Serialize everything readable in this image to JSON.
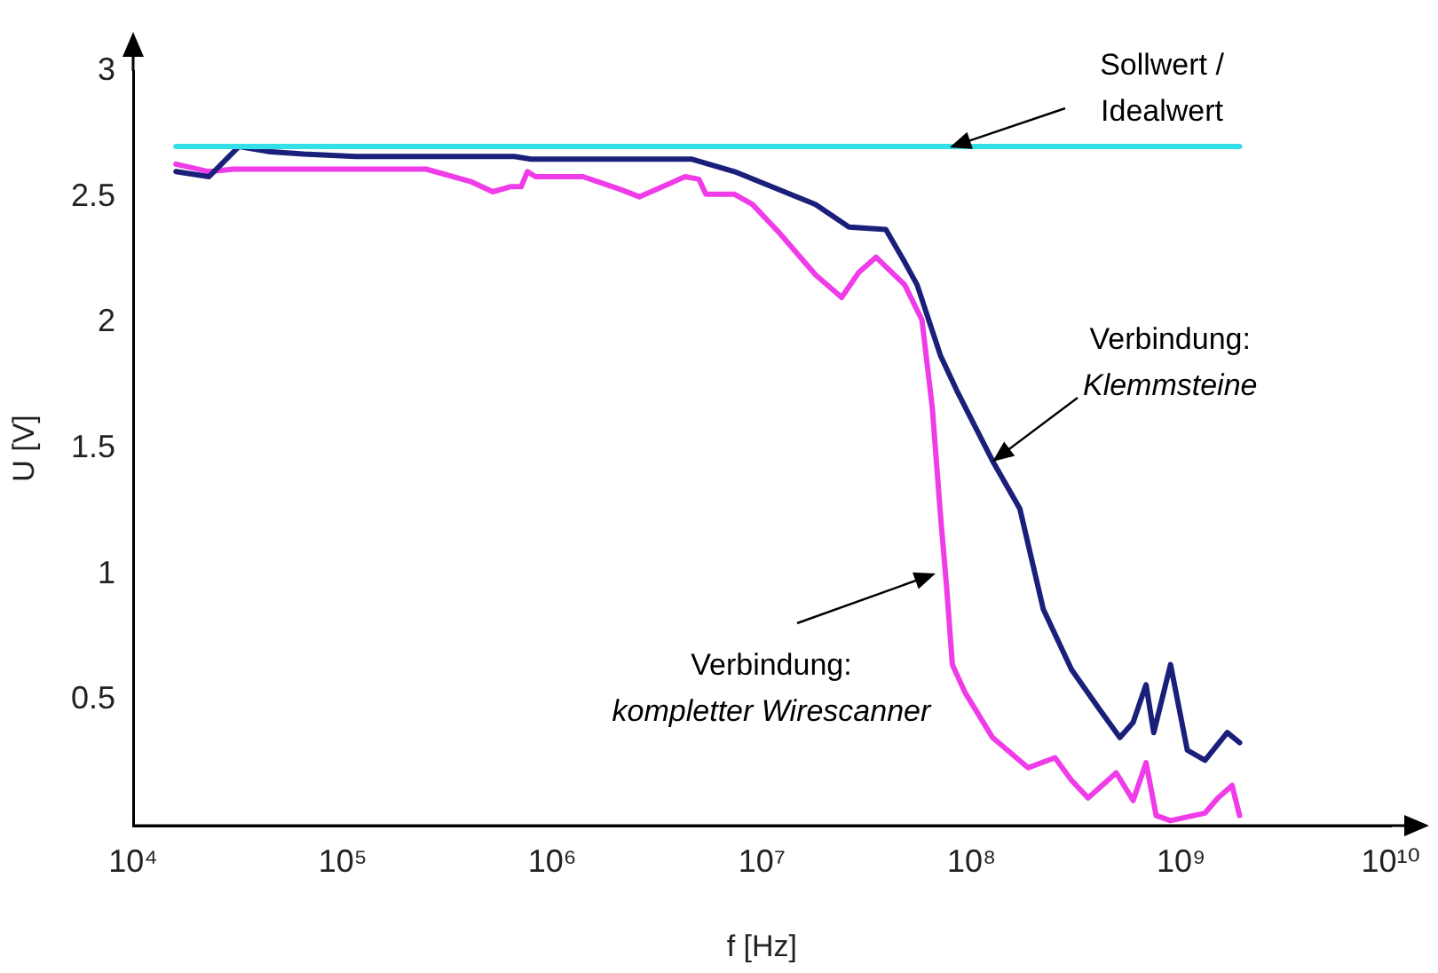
{
  "chart_data": {
    "type": "line",
    "xlabel": "f [Hz]",
    "ylabel": "U [V]",
    "log": "x",
    "grid": false,
    "legend": false,
    "marker": "none",
    "line_style": "solid",
    "xlim": [
      10000,
      10000000000
    ],
    "xticks": [
      {
        "value": 10000,
        "label": "10⁴"
      },
      {
        "value": 100000,
        "label": "10⁵"
      },
      {
        "value": 1000000,
        "label": "10⁶"
      },
      {
        "value": 10000000,
        "label": "10⁷"
      },
      {
        "value": 100000000,
        "label": "10⁸"
      },
      {
        "value": 1000000000,
        "label": "10⁹"
      },
      {
        "value": 10000000000,
        "label": "10¹⁰"
      }
    ],
    "ylim": [
      0,
      3
    ],
    "yticks": [
      0.5,
      1,
      1.5,
      2,
      2.5,
      3
    ],
    "series": [
      {
        "color": "#33e0e8",
        "x": [
          16000,
          1900000000
        ],
        "values": [
          2.7,
          2.7
        ]
      },
      {
        "color": "#1a1f7a",
        "x": [
          16000,
          23000,
          32000,
          44000,
          65000,
          115000,
          660000,
          790000,
          4600000,
          7400000,
          18000000,
          26000000,
          39000000,
          48000000,
          55000000,
          71000000,
          85000000,
          126000000,
          170000000,
          220000000,
          300000000,
          410000000,
          510000000,
          590000000,
          680000000,
          740000000,
          890000000,
          1070000000,
          1300000000,
          1660000000,
          1900000000
        ],
        "values": [
          2.6,
          2.58,
          2.7,
          2.68,
          2.67,
          2.66,
          2.66,
          2.65,
          2.65,
          2.6,
          2.47,
          2.38,
          2.37,
          2.24,
          2.15,
          1.87,
          1.73,
          1.45,
          1.26,
          0.86,
          0.62,
          0.46,
          0.35,
          0.41,
          0.56,
          0.37,
          0.64,
          0.3,
          0.26,
          0.37,
          0.33
        ]
      },
      {
        "color": "#f03ce8",
        "x": [
          16000,
          23000,
          30000,
          250000,
          410000,
          520000,
          630000,
          710000,
          760000,
          830000,
          1400000,
          2100000,
          2600000,
          4300000,
          5000000,
          5400000,
          7400000,
          9000000,
          12000000,
          18000000,
          24000000,
          29000000,
          35000000,
          48000000,
          58000000,
          65000000,
          71000000,
          76000000,
          81000000,
          93000000,
          126000000,
          186000000,
          250000000,
          300000000,
          360000000,
          490000000,
          590000000,
          680000000,
          760000000,
          890000000,
          1300000000,
          1500000000,
          1750000000,
          1900000000
        ],
        "values": [
          2.63,
          2.6,
          2.61,
          2.61,
          2.56,
          2.52,
          2.54,
          2.54,
          2.6,
          2.58,
          2.58,
          2.53,
          2.5,
          2.58,
          2.57,
          2.51,
          2.51,
          2.47,
          2.36,
          2.19,
          2.1,
          2.2,
          2.26,
          2.15,
          2.01,
          1.66,
          1.24,
          0.95,
          0.64,
          0.53,
          0.35,
          0.23,
          0.27,
          0.18,
          0.11,
          0.21,
          0.1,
          0.25,
          0.04,
          0.02,
          0.05,
          0.11,
          0.16,
          0.04
        ]
      }
    ],
    "annotations": [
      {
        "text": "Sollwert /\nIdealwert",
        "x": 78000000,
        "y": 2.7
      },
      {
        "text": "Verbindung:\nKlemmsteine",
        "x": 126000000,
        "y": 1.45
      },
      {
        "text": "Verbindung:\nkompletter Wirescanner",
        "x": 68000000,
        "y": 1.0
      }
    ]
  }
}
